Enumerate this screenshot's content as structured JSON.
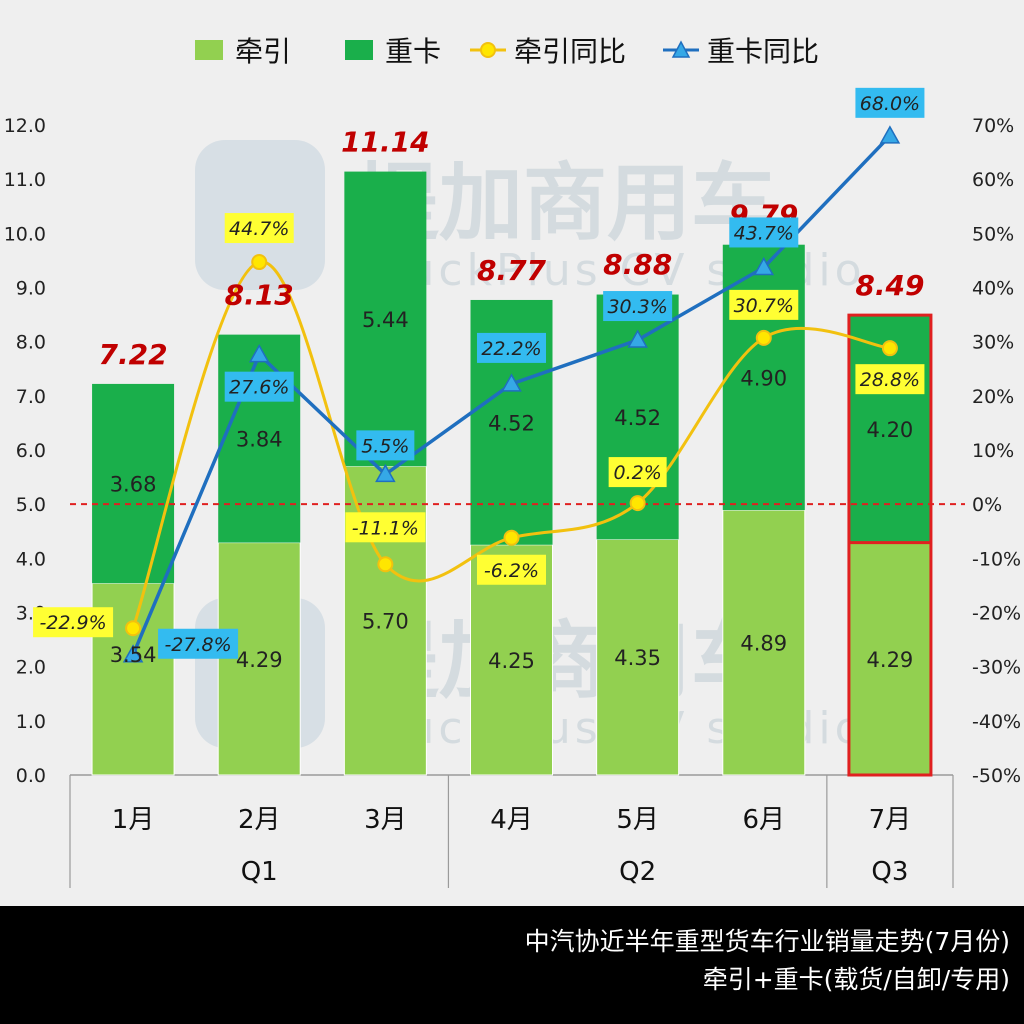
{
  "chart_data": {
    "type": "bar",
    "categories": [
      "1月",
      "2月",
      "3月",
      "4月",
      "5月",
      "6月",
      "7月"
    ],
    "quarters": [
      {
        "label": "Q1",
        "months": [
          "1月",
          "2月",
          "3月"
        ]
      },
      {
        "label": "Q2",
        "months": [
          "4月",
          "5月",
          "6月"
        ]
      },
      {
        "label": "Q3",
        "months": [
          "7月"
        ]
      }
    ],
    "stacked": true,
    "series": [
      {
        "name": "牵引",
        "kind": "bar",
        "axis": "left",
        "color": "#92d050",
        "values": [
          3.54,
          4.29,
          5.7,
          4.25,
          4.35,
          4.89,
          4.29
        ],
        "labels": [
          "3.54",
          "4.29",
          "5.70",
          "4.25",
          "4.35",
          "4.89",
          "4.29"
        ]
      },
      {
        "name": "重卡",
        "kind": "bar",
        "axis": "left",
        "color": "#1aaf4b",
        "values": [
          3.68,
          3.84,
          5.44,
          4.52,
          4.52,
          4.9,
          4.2
        ],
        "labels": [
          "3.68",
          "3.84",
          "5.44",
          "4.52",
          "4.52",
          "4.90",
          "4.20"
        ]
      },
      {
        "name": "牵引同比",
        "kind": "line",
        "axis": "right",
        "color": "#f2c10f",
        "values": [
          -22.9,
          44.7,
          -11.1,
          -6.2,
          0.2,
          30.7,
          28.8
        ],
        "labels": [
          "-22.9%",
          "44.7%",
          "-11.1%",
          "-6.2%",
          "0.2%",
          "30.7%",
          "28.8%"
        ]
      },
      {
        "name": "重卡同比",
        "kind": "line",
        "axis": "right",
        "color": "#1f6fbf",
        "values": [
          -27.8,
          27.6,
          5.5,
          22.2,
          30.3,
          43.7,
          68.0
        ],
        "labels": [
          "-27.8%",
          "27.6%",
          "5.5%",
          "22.2%",
          "30.3%",
          "43.7%",
          "68.0%"
        ]
      }
    ],
    "totals": [
      7.22,
      8.13,
      11.14,
      8.77,
      8.88,
      9.79,
      8.49
    ],
    "total_labels": [
      "7.22",
      "8.13",
      "11.14",
      "8.77",
      "8.88",
      "9.79",
      "8.49"
    ],
    "ylim": [
      0,
      12
    ],
    "y_ticks": [
      "0.0",
      "1.0",
      "2.0",
      "3.0",
      "4.0",
      "5.0",
      "6.0",
      "7.0",
      "8.0",
      "9.0",
      "10.0",
      "11.0",
      "12.0"
    ],
    "y2lim": [
      -50,
      70
    ],
    "y2_ticks": [
      "-50%",
      "-40%",
      "-30%",
      "-20%",
      "-10%",
      "0%",
      "10%",
      "20%",
      "30%",
      "40%",
      "50%",
      "60%",
      "70%"
    ],
    "reference_line": {
      "axis": "right",
      "value": 0,
      "color": "#e02020"
    },
    "highlight": {
      "category": "7月",
      "color": "#e02020"
    },
    "legend_position": "top",
    "grid": false
  },
  "watermark": {
    "cn": "提加商用车",
    "en": "TruckPlus CV studio"
  },
  "caption": {
    "line1": "中汽协近半年重型货车行业销量走势(7月份)",
    "line2": "牵引+重卡(载货/自卸/专用)"
  }
}
